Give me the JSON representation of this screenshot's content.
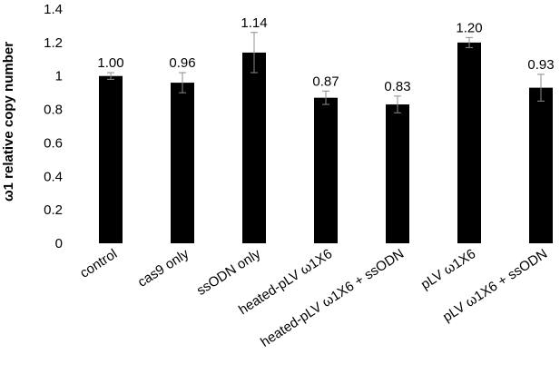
{
  "chart_data": {
    "type": "bar",
    "title": "",
    "xlabel": "",
    "ylabel": "ω1 relative copy number",
    "ylim": [
      0,
      1.4
    ],
    "yticks": [
      "0",
      "0.2",
      "0.4",
      "0.6",
      "0.8",
      "1",
      "1.2",
      "1.4"
    ],
    "ytick_values": [
      0,
      0.2,
      0.4,
      0.6,
      0.8,
      1.0,
      1.2,
      1.4
    ],
    "grid": false,
    "categories": [
      "control",
      "cas9 only",
      "ssODN only",
      "heated-pLV ω1X6",
      "heated-pLV ω1X6 + ssODN",
      "pLV ω1X6",
      "pLV ω1X6 + ssODN"
    ],
    "values": [
      1.0,
      0.96,
      1.14,
      0.87,
      0.83,
      1.2,
      0.93
    ],
    "value_labels": [
      "1.00",
      "0.96",
      "1.14",
      "0.87",
      "0.83",
      "1.20",
      "0.93"
    ],
    "error": [
      0.02,
      0.06,
      0.12,
      0.04,
      0.05,
      0.03,
      0.08
    ],
    "bar_color": "#000000"
  }
}
